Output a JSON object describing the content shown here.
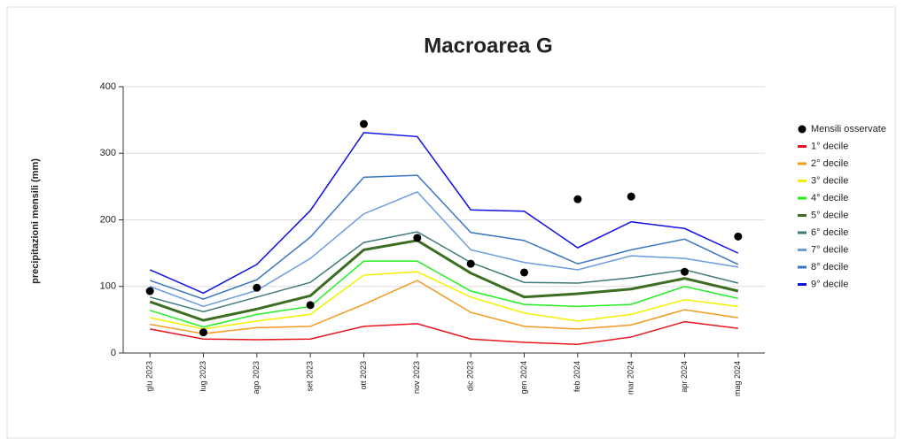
{
  "chart_data": {
    "type": "line",
    "title": "Macroarea G",
    "y_label": "precipitazioni mensili (mm)",
    "categories": [
      "giu 2023",
      "lug 2023",
      "ago 2023",
      "set 2023",
      "ott 2023",
      "nov 2023",
      "dic 2023",
      "gen 2024",
      "feb 2024",
      "mar 2024",
      "apr 2024",
      "mag 2024"
    ],
    "ylim": [
      0,
      400
    ],
    "yticks": [
      0,
      100,
      200,
      300,
      400
    ],
    "grid": true,
    "legend": "right",
    "series": [
      {
        "name": "Mensili osservate",
        "color": "#000000",
        "mode": "markers",
        "values": [
          93,
          31,
          98,
          72,
          344,
          173,
          134,
          121,
          231,
          235,
          122,
          175
        ]
      },
      {
        "name": "1° decile",
        "color": "#e8141e",
        "mode": "lines",
        "line_width": 1.5,
        "values": [
          36,
          21,
          20,
          21,
          40,
          44,
          21,
          16,
          13,
          24,
          47,
          37
        ]
      },
      {
        "name": "2° decile",
        "color": "#f59a1e",
        "mode": "lines",
        "line_width": 1.5,
        "values": [
          43,
          29,
          38,
          40,
          73,
          109,
          61,
          40,
          36,
          42,
          65,
          53
        ]
      },
      {
        "name": "3° decile",
        "color": "#f2f200",
        "mode": "lines",
        "line_width": 1.5,
        "values": [
          53,
          36,
          48,
          58,
          117,
          122,
          84,
          60,
          48,
          58,
          80,
          70
        ]
      },
      {
        "name": "4° decile",
        "color": "#22ee22",
        "mode": "lines",
        "line_width": 1.5,
        "values": [
          64,
          39,
          58,
          70,
          138,
          138,
          93,
          73,
          70,
          73,
          100,
          82
        ]
      },
      {
        "name": "5° decile",
        "color": "#3b6e22",
        "mode": "lines",
        "line_width": 3,
        "values": [
          77,
          49,
          66,
          86,
          155,
          169,
          120,
          84,
          89,
          96,
          112,
          93
        ]
      },
      {
        "name": "6° decile",
        "color": "#3f7a78",
        "mode": "lines",
        "line_width": 1.5,
        "values": [
          84,
          62,
          84,
          106,
          166,
          182,
          136,
          106,
          105,
          113,
          125,
          105
        ]
      },
      {
        "name": "7° decile",
        "color": "#6b9ce0",
        "mode": "lines",
        "line_width": 1.5,
        "values": [
          100,
          70,
          94,
          142,
          209,
          242,
          155,
          136,
          125,
          146,
          142,
          129
        ]
      },
      {
        "name": "8° decile",
        "color": "#3a76c4",
        "mode": "lines",
        "line_width": 1.5,
        "values": [
          109,
          81,
          110,
          174,
          264,
          267,
          181,
          169,
          134,
          155,
          171,
          133
        ]
      },
      {
        "name": "9° decile",
        "color": "#1010e6",
        "mode": "lines",
        "line_width": 1.5,
        "values": [
          125,
          90,
          133,
          214,
          331,
          325,
          215,
          213,
          158,
          197,
          187,
          150
        ]
      }
    ]
  }
}
